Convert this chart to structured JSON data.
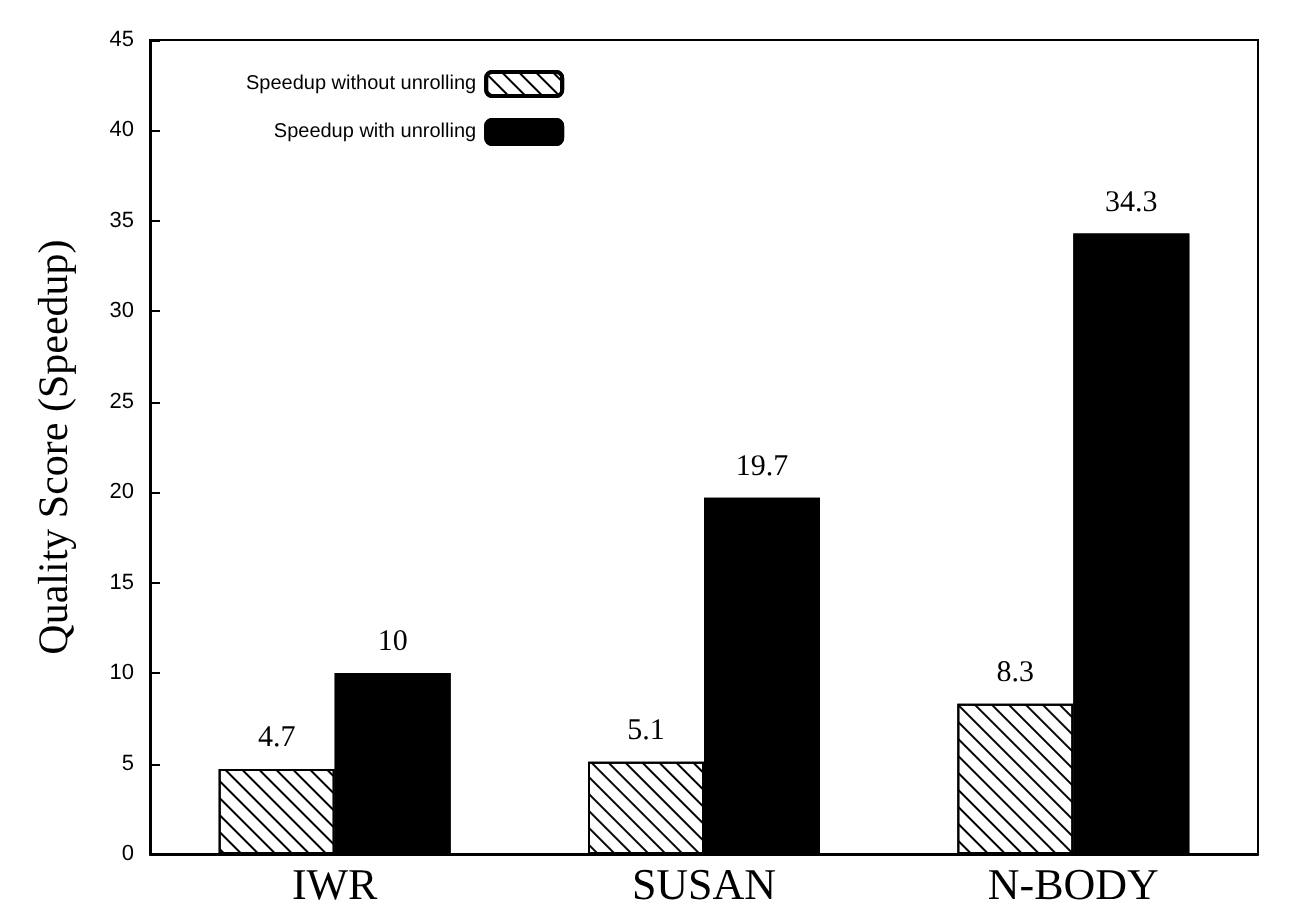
{
  "chart_data": {
    "type": "bar",
    "ylabel": "Quality Score (Speedup)",
    "categories": [
      "IWR",
      "SUSAN",
      "N-BODY"
    ],
    "series": [
      {
        "name": "Speedup without unrolling",
        "color": "#ffffff",
        "values": [
          4.7,
          5.1,
          8.3
        ]
      },
      {
        "name": "Speedup with unrolling",
        "color": "#000000",
        "values": [
          10,
          19.7,
          34.3
        ]
      }
    ],
    "ylim": [
      0,
      45
    ],
    "yticks": [
      0,
      5,
      10,
      15,
      20,
      25,
      30,
      35,
      40,
      45
    ],
    "data_labels": true,
    "legend": "top left",
    "grid": false
  }
}
